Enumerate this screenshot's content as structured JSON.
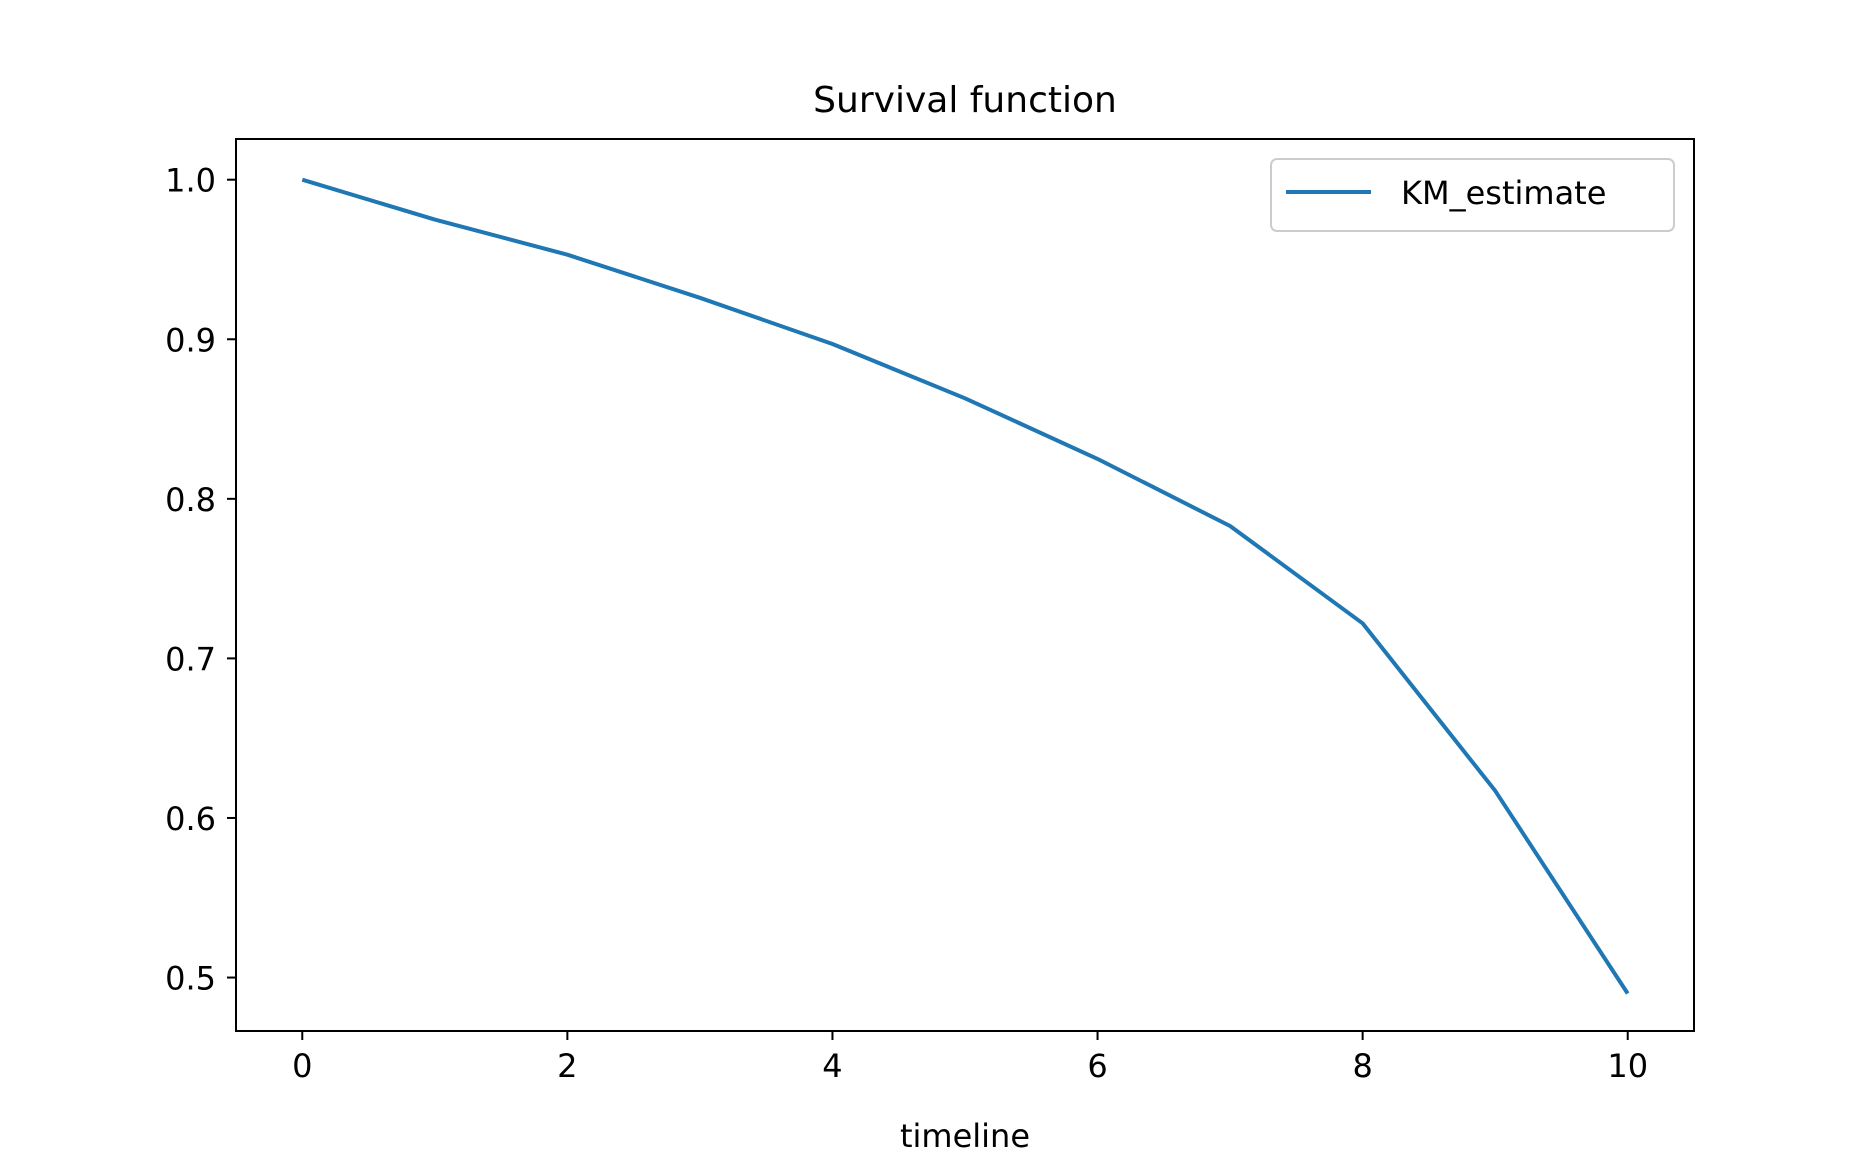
{
  "chart_data": {
    "type": "line",
    "title": "Survival function",
    "xlabel": "timeline",
    "ylabel": "",
    "xlim": [
      -0.5,
      10.5
    ],
    "ylim": [
      0.4665,
      1.0255
    ],
    "x_ticks": [
      0,
      2,
      4,
      6,
      8,
      10
    ],
    "x_tick_labels": [
      "0",
      "2",
      "4",
      "6",
      "8",
      "10"
    ],
    "y_ticks": [
      0.5,
      0.6,
      0.7,
      0.8,
      0.9,
      1.0
    ],
    "y_tick_labels": [
      "0.5",
      "0.6",
      "0.7",
      "0.8",
      "0.9",
      "1.0"
    ],
    "grid": false,
    "legend_position": "top-right",
    "series": [
      {
        "name": "KM_estimate",
        "color": "#1f77b4",
        "x": [
          0,
          1,
          2,
          3,
          4,
          5,
          6,
          7,
          8,
          9,
          10
        ],
        "y": [
          1.0,
          0.975,
          0.953,
          0.926,
          0.897,
          0.863,
          0.825,
          0.783,
          0.722,
          0.617,
          0.49
        ]
      }
    ]
  }
}
